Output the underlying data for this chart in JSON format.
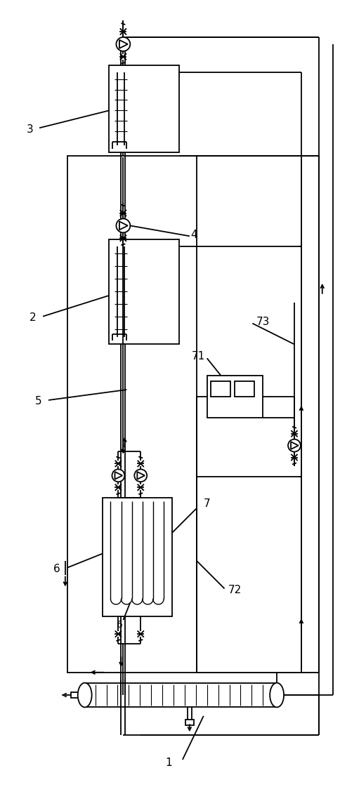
{
  "bg_color": "#ffffff",
  "line_color": "#000000",
  "fig_width": 4.84,
  "fig_height": 11.31,
  "dpi": 100
}
